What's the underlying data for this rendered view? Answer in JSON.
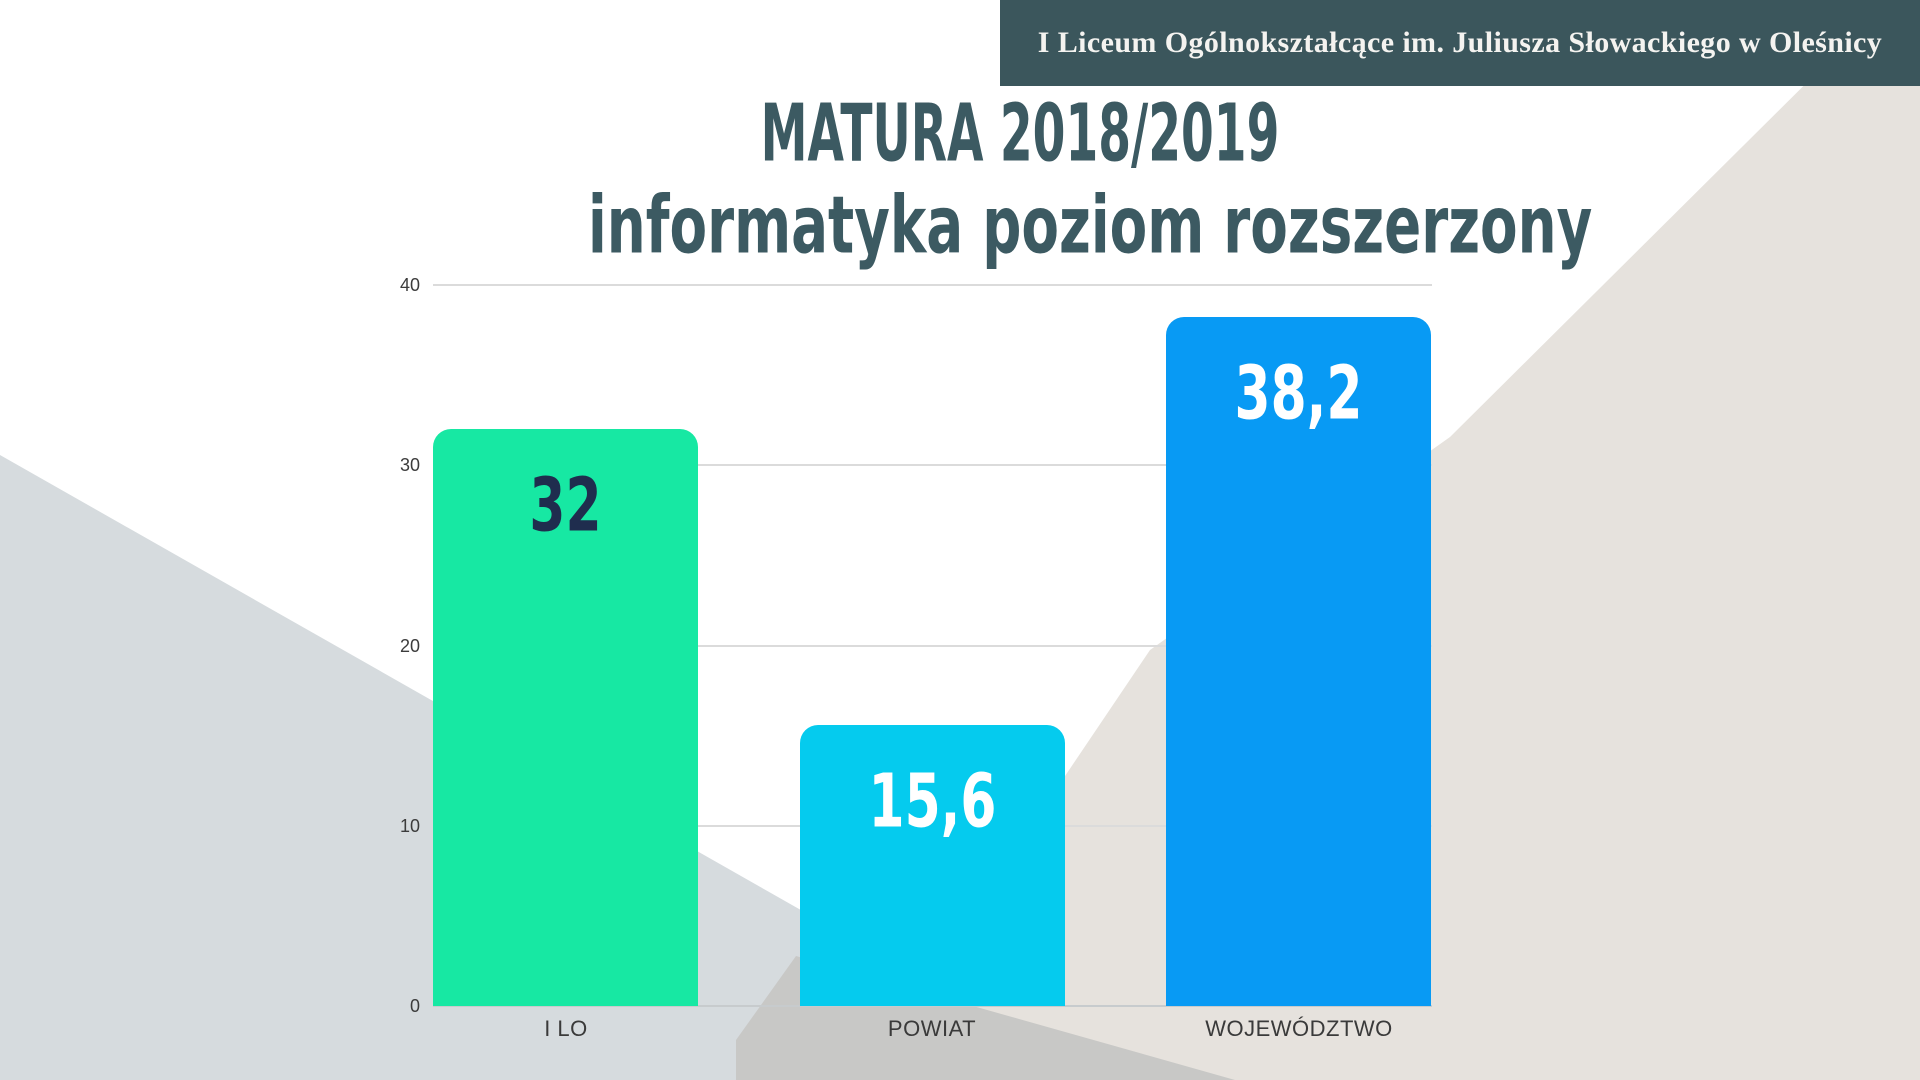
{
  "banner": {
    "text": "I Liceum Ogólnokształcące im. Juliusza Słowackiego w Oleśnicy",
    "bg_color": "#3B565C",
    "text_color": "#F4F3F0"
  },
  "title": {
    "line1": "MATURA 2018/2019",
    "line2": "informatyka poziom rozszerzony",
    "color": "#3C5A62"
  },
  "chart_data": {
    "type": "bar",
    "title": "MATURA 2018/2019 informatyka poziom rozszerzony",
    "categories": [
      "I LO",
      "POWIAT",
      "WOJEWÓDZTWO"
    ],
    "values": [
      32,
      15.6,
      38.2
    ],
    "value_labels": [
      "32",
      "15,6",
      "38,2"
    ],
    "value_label_colors": [
      "#1F2D4E",
      "#FFFFFF",
      "#FFFFFF"
    ],
    "bar_colors": [
      "#17E8A3",
      "#05CBEE",
      "#089AF4"
    ],
    "yticks": [
      40,
      30,
      20,
      10,
      0
    ],
    "ylim": [
      0,
      40
    ],
    "xlabel": "",
    "ylabel": "",
    "grid": true,
    "legend": false,
    "gridline_color": "#DBDBDB",
    "axisline_color": "#C7CBCD"
  },
  "background": {
    "left_triangle_color": "#D6DBDE",
    "beige_triangle_color": "#E6E2DD",
    "dark_wedge_color": "#C8C8C6"
  }
}
